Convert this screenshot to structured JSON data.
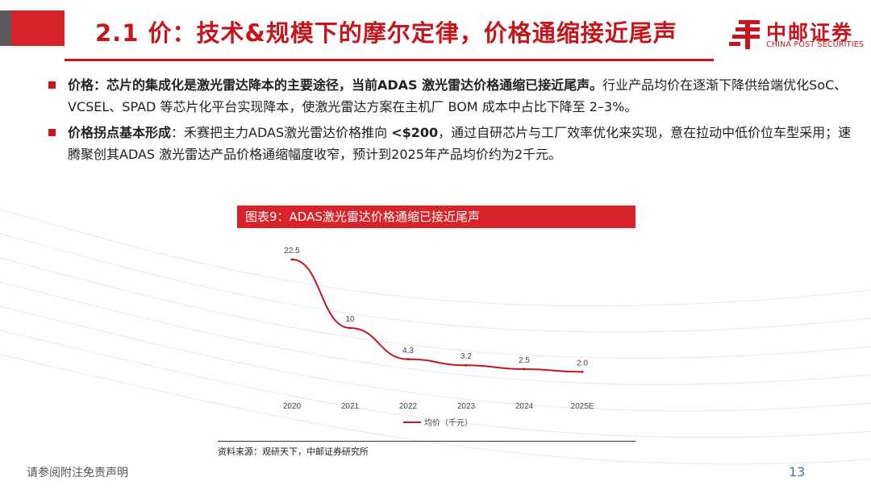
{
  "header": {
    "title": "2.1 价：技术&规模下的摩尔定律，价格通缩接近尾声",
    "logo_text": "中邮证券",
    "logo_subtitle": "CHINA POST SECURITIES"
  },
  "bullets": [
    {
      "label": "价格：芯片的集成化是激光雷达降本的主要途径，当前ADAS 激光雷达价格通缩已接近尾声。",
      "text": "行业产品均价在逐渐下降供给端优化SoC、VCSEL、SPAD 等芯片化平台实现降本，使激光雷达方案在主机厂 BOM 成本中占比下降至 2–3%。"
    },
    {
      "label": "价格拐点基本形成",
      "text_before": "：禾赛把主力ADAS激光雷达价格推向  ",
      "highlight": "<$200",
      "text_after": "，通过自研芯片与工厂效率优化来实现，意在拉动中低价位车型采用；速腾聚创其ADAS 激光雷达产品价格通缩幅度收窄，预计到2025年产品均价约为2千元。"
    }
  ],
  "chart_box": {
    "title": "图表9：ADAS激光雷达价格通缩已接近尾声"
  },
  "chart_data": {
    "type": "line",
    "categories": [
      "2020",
      "2021",
      "2022",
      "2023",
      "2024",
      "2025E"
    ],
    "series": [
      {
        "name": "均价（千元）",
        "values": [
          22.5,
          10,
          4.3,
          3.2,
          2.5,
          2.0
        ]
      }
    ],
    "data_labels": [
      "22.5",
      "10",
      "4.3",
      "3.2",
      "2.5",
      "2.0"
    ],
    "title": "",
    "xlabel": "",
    "ylabel": "",
    "ylim": [
      0,
      25
    ],
    "grid": false,
    "legend_position": "bottom",
    "line_color": "#c4161c"
  },
  "source": "资料来源：观研天下，中邮证券研究所",
  "footer": {
    "disclaimer": "请参阅附注免责声明",
    "page_number": "13"
  },
  "colors": {
    "brand_red": "#c4161c",
    "bar_red": "#d8232a",
    "bar_gray": "#5a5a5a",
    "page_number_blue": "#4a6fa5"
  }
}
